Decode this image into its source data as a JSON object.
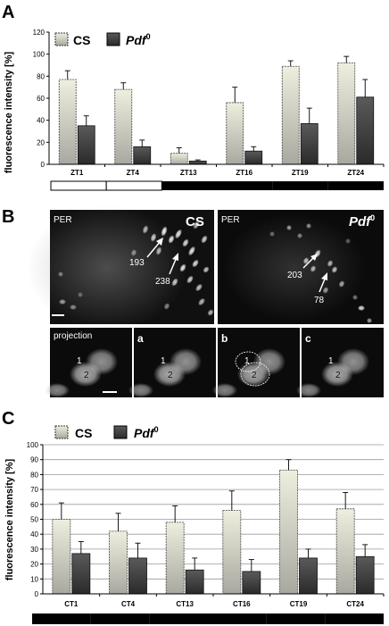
{
  "panel_labels": {
    "a": "A",
    "b": "B",
    "c": "C"
  },
  "colors": {
    "cs_top": "#efefdf",
    "cs_bottom": "#a8a8a0",
    "pdf_top": "#5a5a5a",
    "pdf_bottom": "#2a2a2a",
    "micro_bg": "#0b0b0b"
  },
  "chart_data": [
    {
      "type": "bar",
      "categories": [
        "ZT1",
        "ZT4",
        "ZT13",
        "ZT16",
        "ZT19",
        "ZT24"
      ],
      "series": [
        {
          "name": "CS",
          "values": [
            77,
            68,
            10,
            56,
            89,
            92
          ],
          "errors": [
            8,
            6,
            5,
            14,
            5,
            6
          ]
        },
        {
          "name": "Pdf 0",
          "values": [
            35,
            16,
            3,
            12,
            37,
            61
          ],
          "errors": [
            9,
            6,
            1,
            4,
            14,
            16
          ]
        }
      ],
      "title": "",
      "xlabel": "",
      "ylabel": "fluorescence intensity [%]",
      "ylim": [
        0,
        120
      ],
      "yticks": [
        0,
        20,
        40,
        60,
        80,
        100,
        120
      ],
      "grid": false,
      "legend": "top-left",
      "light_dark_bar": [
        "light",
        "light",
        "dark",
        "dark",
        "dark",
        "dark"
      ]
    },
    {
      "type": "bar",
      "categories": [
        "CT1",
        "CT4",
        "CT13",
        "CT16",
        "CT19",
        "CT24"
      ],
      "series": [
        {
          "name": "CS",
          "values": [
            50,
            42,
            48,
            56,
            83,
            57
          ],
          "errors": [
            11,
            12,
            11,
            13,
            7,
            11
          ]
        },
        {
          "name": "Pdf 0",
          "values": [
            27,
            24,
            16,
            15,
            24,
            25
          ],
          "errors": [
            8,
            10,
            8,
            8,
            6,
            8
          ]
        }
      ],
      "title": "",
      "xlabel": "",
      "ylabel": "fluorescence intensity [%]",
      "ylim": [
        0,
        100
      ],
      "yticks": [
        0,
        10,
        20,
        30,
        40,
        50,
        60,
        70,
        80,
        90,
        100
      ],
      "grid": true,
      "legend": "top-left",
      "light_dark_bar": [
        "dark",
        "dark",
        "dark",
        "dark",
        "dark",
        "dark"
      ]
    }
  ],
  "legend": {
    "cs": "CS",
    "pdf_base": "Pdf",
    "pdf_sup": "0"
  },
  "micrographs": {
    "cs": {
      "stain": "PER",
      "genotype": "CS",
      "arrow1": "193",
      "arrow2": "238"
    },
    "pdf": {
      "stain": "PER",
      "genotype_base": "Pdf",
      "genotype_sup": "0",
      "arrow1": "203",
      "arrow2": "78"
    },
    "strip": [
      {
        "tag": "projection",
        "cell1": "1",
        "cell2": "2"
      },
      {
        "tag": "a",
        "cell1": "1",
        "cell2": "2"
      },
      {
        "tag": "b",
        "cell1": "1",
        "cell2": "2"
      },
      {
        "tag": "c",
        "cell1": "1",
        "cell2": "2"
      }
    ]
  }
}
